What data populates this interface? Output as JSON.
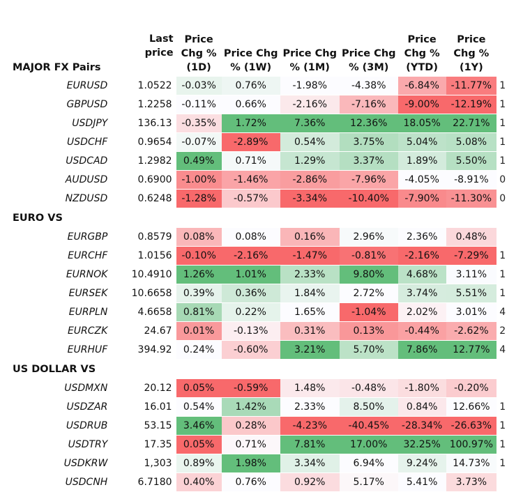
{
  "headers": {
    "section": "MAJOR FX Pairs",
    "last_price": "Last price",
    "chg_1d": "Price Chg % (1D)",
    "chg_1w": "Price Chg % (1W)",
    "chg_1m": "Price Chg % (1M)",
    "chg_3m": "Price Chg % (3M)",
    "chg_ytd": "Price Chg % (YTD)",
    "chg_1y": "Price Chg % (1Y)"
  },
  "colors": {
    "positive": "#63be7b",
    "negative": "#f8696b",
    "neutral": "#fcfcff"
  },
  "sections": [
    {
      "title": "",
      "rows": [
        {
          "pair": "EURUSD",
          "last": "1.0522",
          "chg": [
            "-0.03%",
            "0.76%",
            "-1.98%",
            "-4.38%",
            "-6.84%",
            "-11.77%"
          ],
          "extra": "1"
        },
        {
          "pair": "GBPUSD",
          "last": "1.2258",
          "chg": [
            "-0.11%",
            "0.66%",
            "-2.16%",
            "-7.16%",
            "-9.00%",
            "-12.19%"
          ],
          "extra": "1"
        },
        {
          "pair": "USDJPY",
          "last": "136.13",
          "chg": [
            "-0.35%",
            "1.72%",
            "7.36%",
            "12.36%",
            "18.05%",
            "22.71%"
          ],
          "extra": "1"
        },
        {
          "pair": "USDCHF",
          "last": "0.9654",
          "chg": [
            "-0.07%",
            "-2.89%",
            "0.54%",
            "3.75%",
            "5.04%",
            "5.08%"
          ],
          "extra": "1"
        },
        {
          "pair": "USDCAD",
          "last": "1.2982",
          "chg": [
            "0.49%",
            "0.71%",
            "1.29%",
            "3.37%",
            "1.89%",
            "5.50%"
          ],
          "extra": "1"
        },
        {
          "pair": "AUDUSD",
          "last": "0.6900",
          "chg": [
            "-1.00%",
            "-1.46%",
            "-2.86%",
            "-7.96%",
            "-4.05%",
            "-8.91%"
          ],
          "extra": "0"
        },
        {
          "pair": "NZDUSD",
          "last": "0.6248",
          "chg": [
            "-1.28%",
            "-0.57%",
            "-3.34%",
            "-10.40%",
            "-7.90%",
            "-11.30%"
          ],
          "extra": "0"
        }
      ]
    },
    {
      "title": "EURO VS",
      "rows": [
        {
          "pair": "EURGBP",
          "last": "0.8579",
          "chg": [
            "0.08%",
            "0.08%",
            "0.16%",
            "2.96%",
            "2.36%",
            "0.48%"
          ],
          "extra": ""
        },
        {
          "pair": "EURCHF",
          "last": "1.0156",
          "chg": [
            "-0.10%",
            "-2.16%",
            "-1.47%",
            "-0.81%",
            "-2.16%",
            "-7.29%"
          ],
          "extra": "1"
        },
        {
          "pair": "EURNOK",
          "last": "10.4910",
          "chg": [
            "1.26%",
            "1.01%",
            "2.33%",
            "9.80%",
            "4.68%",
            "3.11%"
          ],
          "extra": "1"
        },
        {
          "pair": "EURSEK",
          "last": "10.6658",
          "chg": [
            "0.39%",
            "0.36%",
            "1.84%",
            "2.72%",
            "3.74%",
            "5.51%"
          ],
          "extra": "1"
        },
        {
          "pair": "EURPLN",
          "last": "4.6658",
          "chg": [
            "0.81%",
            "0.22%",
            "1.65%",
            "-1.04%",
            "2.02%",
            "3.01%"
          ],
          "extra": "4"
        },
        {
          "pair": "EURCZK",
          "last": "24.67",
          "chg": [
            "0.01%",
            "-0.13%",
            "0.31%",
            "0.13%",
            "-0.44%",
            "-2.62%"
          ],
          "extra": "2"
        },
        {
          "pair": "EURHUF",
          "last": "394.92",
          "chg": [
            "0.24%",
            "-0.60%",
            "3.21%",
            "5.70%",
            "7.86%",
            "12.77%"
          ],
          "extra": "4"
        }
      ]
    },
    {
      "title": "US DOLLAR VS",
      "rows": [
        {
          "pair": "USDMXN",
          "last": "20.12",
          "chg": [
            "0.05%",
            "-0.59%",
            "1.48%",
            "-0.48%",
            "-1.80%",
            "-0.20%"
          ],
          "extra": ""
        },
        {
          "pair": "USDZAR",
          "last": "16.01",
          "chg": [
            "0.54%",
            "1.42%",
            "2.33%",
            "8.50%",
            "0.84%",
            "12.66%"
          ],
          "extra": "1"
        },
        {
          "pair": "USDRUB",
          "last": "53.15",
          "chg": [
            "3.46%",
            "0.28%",
            "-4.23%",
            "-40.45%",
            "-28.34%",
            "-26.63%"
          ],
          "extra": "1"
        },
        {
          "pair": "USDTRY",
          "last": "17.35",
          "chg": [
            "0.05%",
            "0.71%",
            "7.81%",
            "17.00%",
            "32.25%",
            "100.97%"
          ],
          "extra": "1"
        },
        {
          "pair": "USDKRW",
          "last": "1,303",
          "chg": [
            "0.89%",
            "1.98%",
            "3.34%",
            "6.94%",
            "9.24%",
            "14.73%"
          ],
          "extra": "1"
        },
        {
          "pair": "USDCNH",
          "last": "6.7180",
          "chg": [
            "0.40%",
            "0.76%",
            "0.92%",
            "5.17%",
            "5.41%",
            "3.73%"
          ],
          "extra": ""
        }
      ]
    }
  ]
}
